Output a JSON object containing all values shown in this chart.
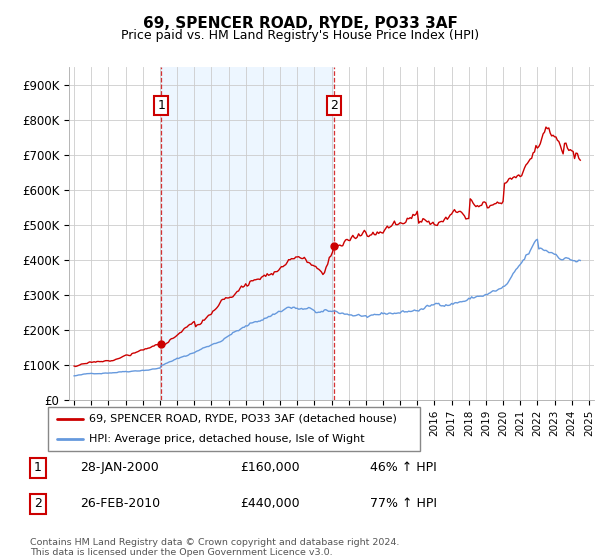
{
  "title": "69, SPENCER ROAD, RYDE, PO33 3AF",
  "subtitle": "Price paid vs. HM Land Registry's House Price Index (HPI)",
  "legend_line1": "69, SPENCER ROAD, RYDE, PO33 3AF (detached house)",
  "legend_line2": "HPI: Average price, detached house, Isle of Wight",
  "annotation1_label": "1",
  "annotation1_date": "28-JAN-2000",
  "annotation1_price": "£160,000",
  "annotation1_hpi": "46% ↑ HPI",
  "annotation2_label": "2",
  "annotation2_date": "26-FEB-2010",
  "annotation2_price": "£440,000",
  "annotation2_hpi": "77% ↑ HPI",
  "footer": "Contains HM Land Registry data © Crown copyright and database right 2024.\nThis data is licensed under the Open Government Licence v3.0.",
  "hpi_color": "#6699dd",
  "price_color": "#cc0000",
  "annotation_color": "#cc0000",
  "shade_color": "#ddeeff",
  "background_color": "#ffffff",
  "grid_color": "#cccccc",
  "ylim": [
    0,
    950000
  ],
  "yticks": [
    0,
    100000,
    200000,
    300000,
    400000,
    500000,
    600000,
    700000,
    800000,
    900000
  ],
  "ytick_labels": [
    "£0",
    "£100K",
    "£200K",
    "£300K",
    "£400K",
    "£500K",
    "£600K",
    "£700K",
    "£800K",
    "£900K"
  ],
  "sale1_x": 2000.08,
  "sale1_y": 160000,
  "sale2_x": 2010.15,
  "sale2_y": 440000,
  "ann1_x": 2000.08,
  "ann2_x": 2010.15,
  "xlim_start": 1994.7,
  "xlim_end": 2025.3
}
